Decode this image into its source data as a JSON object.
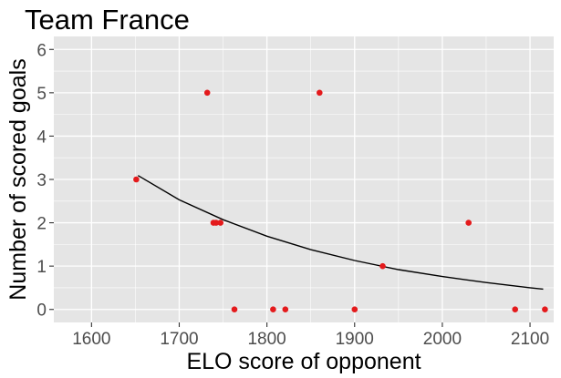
{
  "chart_data": {
    "type": "scatter",
    "title": "Team France",
    "xlabel": "ELO score of opponent",
    "ylabel": "Number of scored goals",
    "xlim": [
      1557,
      2127
    ],
    "ylim": [
      -0.3,
      6.3
    ],
    "xticks": [
      1600,
      1700,
      1800,
      1900,
      2000,
      2100
    ],
    "yticks": [
      0,
      1,
      2,
      3,
      4,
      5,
      6
    ],
    "grid": true,
    "colors": {
      "panel": "#e5e5e5",
      "grid": "#ffffff",
      "points": "#e41a1c",
      "fit_line": "#000000"
    },
    "series": [
      {
        "type": "scatter",
        "x": [
          1651,
          1732,
          1739,
          1742,
          1747,
          1763,
          1807,
          1821,
          1860,
          1900,
          1932,
          2030,
          2083,
          2117
        ],
        "y": [
          3,
          5,
          2,
          2,
          2,
          0,
          0,
          0,
          5,
          0,
          1,
          2,
          0,
          0
        ]
      },
      {
        "type": "line",
        "x": [
          1653,
          1700,
          1750,
          1800,
          1850,
          1900,
          1950,
          2000,
          2050,
          2100,
          2115
        ],
        "y": [
          3.09,
          2.53,
          2.07,
          1.69,
          1.38,
          1.13,
          0.92,
          0.76,
          0.62,
          0.5,
          0.47
        ]
      }
    ]
  }
}
